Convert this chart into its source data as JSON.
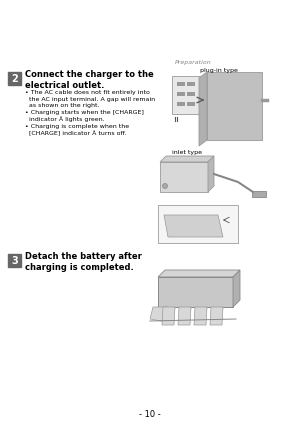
{
  "page_bg": "#ffffff",
  "header_text": "Preparation",
  "header_fontsize": 4.5,
  "header_color": "#888888",
  "page_number": "- 10 -",
  "page_num_fontsize": 6,
  "page_num_color": "#000000",
  "step2_number": "2",
  "step2_title": "Connect the charger to the\nelectrical outlet.",
  "step2_title_fontsize": 6.0,
  "step2_bullet1": "• The AC cable does not fit entirely into\n  the AC input terminal. A gap will remain\n  as shown on the right.",
  "step2_bullet2": "• Charging starts when the [CHARGE]\n  indicator Å lights green.",
  "step2_bullet3": "• Charging is complete when the\n  [CHARGE] indicator Å turns off.",
  "step2_bullet_fontsize": 4.5,
  "plugin_label": "plug-in type",
  "plugin_label_fontsize": 4.5,
  "inlet_label": "inlet type",
  "inlet_label_fontsize": 4.5,
  "step3_number": "3",
  "step3_title": "Detach the battery after\ncharging is completed.",
  "step3_title_fontsize": 6.0,
  "text_color": "#000000",
  "step_num_bg": "#666666",
  "step_num_color": "#ffffff",
  "step_num_fontsize": 7,
  "outlet_gray": "#d8d8d8",
  "tower_gray": "#c0c0c0",
  "dark_gray": "#999999",
  "light_gray": "#e8e8e8"
}
